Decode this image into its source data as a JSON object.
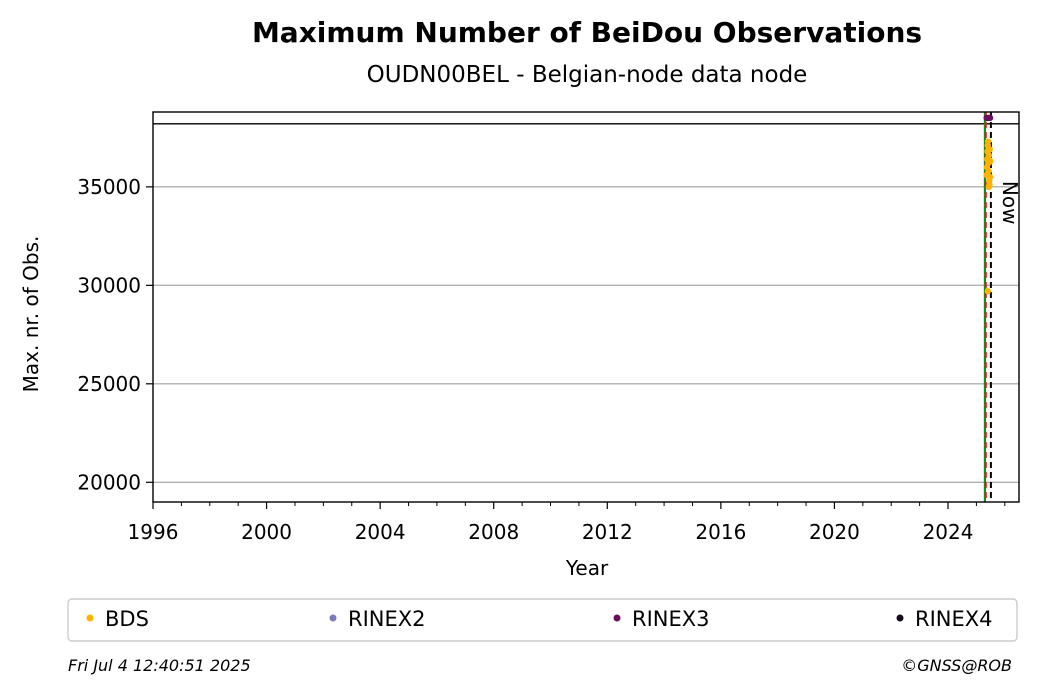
{
  "chart_data": {
    "type": "scatter",
    "title": "Maximum Number of BeiDou Observations",
    "subtitle": "OUDN00BEL - Belgian-node data node",
    "xlabel": "Year",
    "ylabel": "Max. nr. of Obs.",
    "xlim": [
      1996,
      2026.5
    ],
    "ylim": [
      19000,
      38800
    ],
    "xticks": [
      1996,
      2000,
      2004,
      2008,
      2012,
      2016,
      2020,
      2024
    ],
    "yticks": [
      20000,
      25000,
      30000,
      35000
    ],
    "grid": "horizontal",
    "reference_lines": {
      "green_solid_year": 2025.3,
      "red_dashed_year": 2025.33,
      "now_year": 2025.51,
      "now_label": "Now",
      "upper_limit_value": 38200
    },
    "series": [
      {
        "name": "BDS",
        "color": "#ffb300",
        "x": [
          2025.36,
          2025.37,
          2025.38,
          2025.39,
          2025.4,
          2025.41,
          2025.42,
          2025.43,
          2025.44,
          2025.45,
          2025.46,
          2025.47,
          2025.48,
          2025.49,
          2025.4,
          2025.44
        ],
        "y": [
          35600,
          36000,
          36400,
          36800,
          37100,
          37300,
          36200,
          35800,
          36600,
          35300,
          35100,
          36900,
          35500,
          36300,
          29700,
          35000
        ]
      },
      {
        "name": "RINEX2",
        "color": "#7b7bbf",
        "x": [],
        "y": []
      },
      {
        "name": "RINEX3",
        "color": "#6a0f5e",
        "x": [
          2025.36,
          2025.42,
          2025.48
        ],
        "y": [
          38500,
          38500,
          38500
        ]
      },
      {
        "name": "RINEX4",
        "color": "#1a0a1e",
        "x": [],
        "y": []
      }
    ],
    "legend": {
      "placement": "bottom",
      "columns": 4
    }
  },
  "footer": {
    "timestamp": "Fri Jul  4 12:40:51 2025",
    "copyright": "©GNSS@ROB"
  }
}
